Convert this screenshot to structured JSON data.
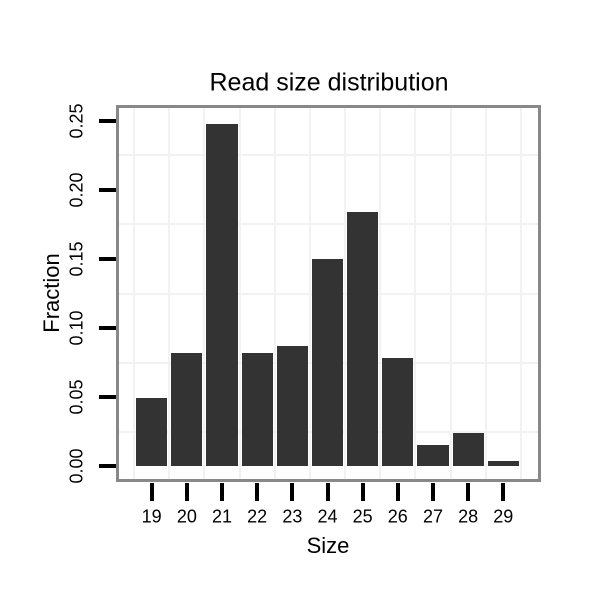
{
  "chart_data": {
    "type": "bar",
    "title": "Read size distribution",
    "xlabel": "Size",
    "ylabel": "Fraction",
    "categories": [
      "19",
      "20",
      "21",
      "22",
      "23",
      "24",
      "25",
      "26",
      "27",
      "28",
      "29"
    ],
    "values": [
      0.049,
      0.082,
      0.248,
      0.082,
      0.087,
      0.15,
      0.184,
      0.078,
      0.015,
      0.024,
      0.004
    ],
    "ylim": [
      -0.0094,
      0.2594
    ],
    "yticks": [
      0.0,
      0.05,
      0.1,
      0.15,
      0.2,
      0.25
    ],
    "ytick_labels": [
      "0.00",
      "0.05",
      "0.10",
      "0.15",
      "0.20",
      "0.25"
    ],
    "grid": {
      "visible": true,
      "h_values": [
        0.025,
        0.075,
        0.125,
        0.175,
        0.225
      ],
      "v_at_bar_boundaries": true,
      "color": "#f2f2f2"
    },
    "legend_position": "none",
    "colors": {
      "bar": "#333333",
      "frame": "#888888",
      "tick": "#000000",
      "text": "#000000",
      "background": "#ffffff"
    }
  }
}
